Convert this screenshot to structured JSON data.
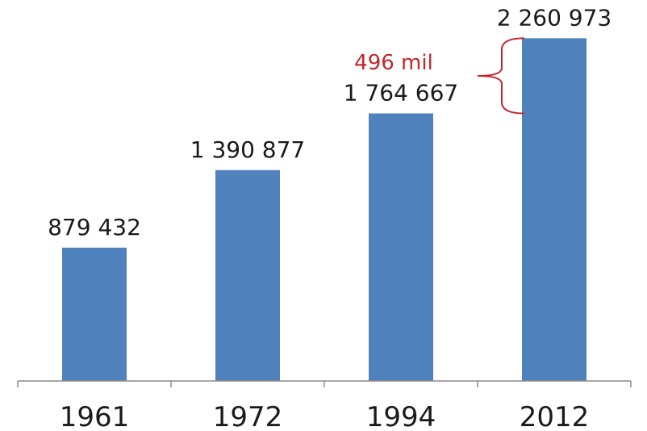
{
  "chart_data": {
    "type": "bar",
    "categories": [
      "1961",
      "1972",
      "1994",
      "2012"
    ],
    "values": [
      879432,
      1390877,
      1764667,
      2260973
    ],
    "value_labels": [
      "879 432",
      "1 390 877",
      "1 764 667",
      "2 260 973"
    ],
    "title": "",
    "xlabel": "",
    "ylabel": "",
    "ylim": [
      0,
      2300000
    ],
    "grid": false,
    "legend": "none",
    "bar_color": "#4F81BD",
    "annotation": {
      "text": "496 mil",
      "color": "#C0282D",
      "spans": [
        "1994",
        "2012"
      ]
    }
  }
}
